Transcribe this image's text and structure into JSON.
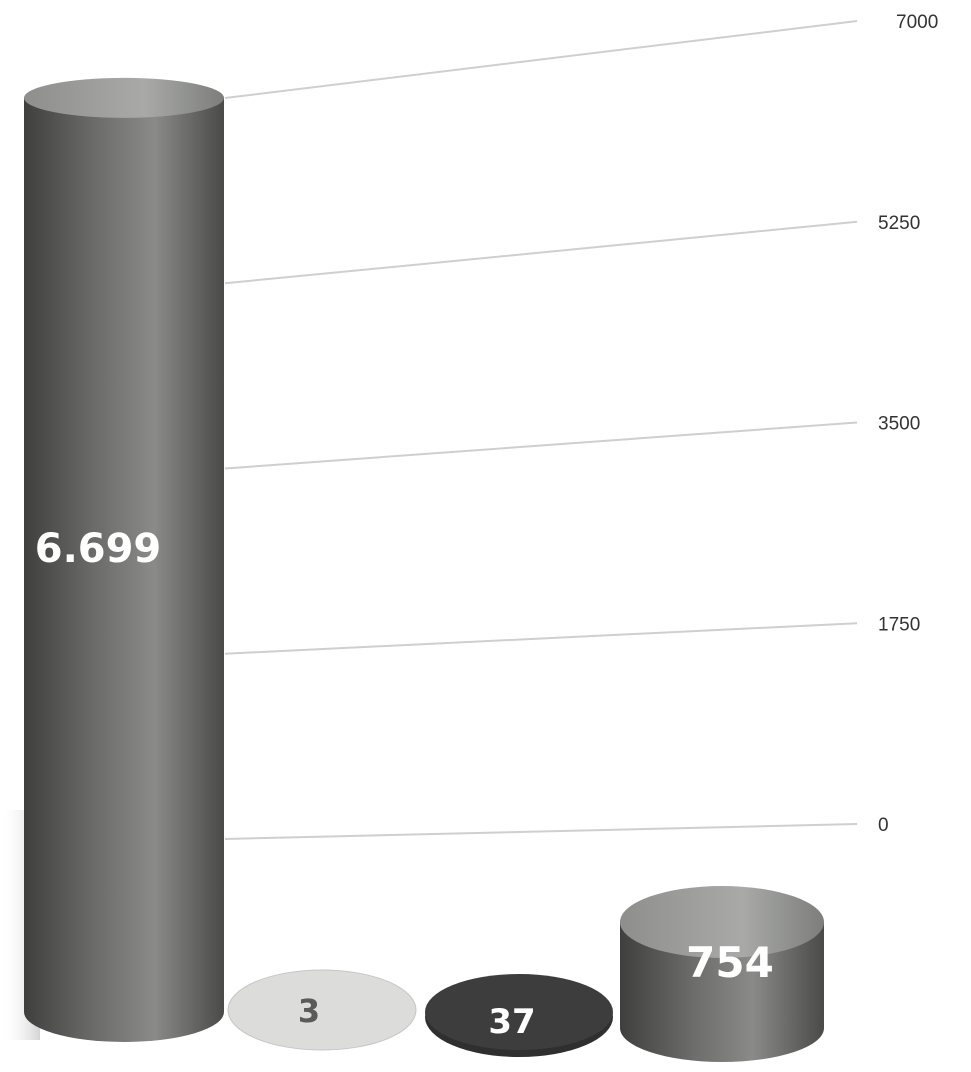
{
  "chart_data": {
    "type": "bar",
    "style": "3d-cylinder",
    "categories": [
      "",
      "",
      "",
      ""
    ],
    "values": [
      6699,
      3,
      37,
      754
    ],
    "data_labels": [
      "6.699",
      "3",
      "37",
      "754"
    ],
    "colors": [
      "#5f605e",
      "#dcdcda",
      "#3d3d3d",
      "#6c6c6a"
    ],
    "label_colors": [
      "#ffffff",
      "#5a5a5a",
      "#ffffff",
      "#ffffff"
    ],
    "ylim": [
      0,
      7000
    ],
    "ticks": [
      0,
      1750,
      3500,
      5250,
      7000
    ],
    "tick_labels": [
      "0",
      "1750",
      "3500",
      "5250",
      "7000"
    ],
    "grid": true,
    "legend": "none",
    "title": "",
    "xlabel": "",
    "ylabel": ""
  }
}
